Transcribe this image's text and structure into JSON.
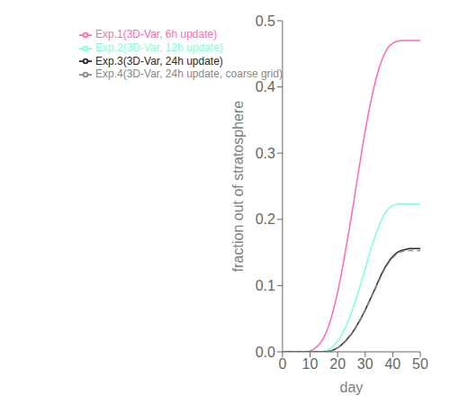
{
  "chart_data": {
    "type": "line",
    "xlabel": "day",
    "ylabel": "fraction out of stratosphere",
    "xlim": [
      0,
      50
    ],
    "ylim": [
      0,
      0.5
    ],
    "xticks": [
      0,
      10,
      20,
      30,
      40,
      50
    ],
    "yticks": [
      {
        "value": 0.0,
        "label": "0.0"
      },
      0.1,
      0.2,
      0.3,
      0.4,
      0.5
    ],
    "grid": false,
    "legend": "upper left",
    "series": [
      {
        "name": "Exp.1(3D-Var, 6h update)",
        "color": "#ff69b4",
        "line_style": "solid",
        "x": [
          0,
          9,
          10,
          11,
          12,
          13,
          14,
          15,
          16,
          17,
          18,
          19,
          20,
          21,
          22,
          23,
          24,
          25,
          26,
          27,
          28,
          29,
          30,
          31,
          32,
          33,
          34,
          35,
          36,
          37,
          38,
          39,
          40,
          41,
          42,
          43,
          44,
          45,
          46,
          47,
          48,
          49,
          50
        ],
        "values": [
          0.0,
          0.0,
          0.001,
          0.003,
          0.006,
          0.01,
          0.015,
          0.022,
          0.031,
          0.042,
          0.056,
          0.072,
          0.09,
          0.11,
          0.132,
          0.156,
          0.18,
          0.205,
          0.23,
          0.257,
          0.283,
          0.309,
          0.333,
          0.356,
          0.377,
          0.396,
          0.413,
          0.428,
          0.44,
          0.45,
          0.458,
          0.463,
          0.466,
          0.468,
          0.469,
          0.47,
          0.47,
          0.47,
          0.47,
          0.47,
          0.47,
          0.47,
          0.47
        ]
      },
      {
        "name": "Exp.2(3D-Var, 12h update)",
        "color": "#7fffd4",
        "line_style": "solid",
        "x": [
          0,
          14,
          15,
          16,
          17,
          18,
          19,
          20,
          21,
          22,
          23,
          24,
          25,
          26,
          27,
          28,
          29,
          30,
          31,
          32,
          33,
          34,
          35,
          36,
          37,
          38,
          39,
          40,
          41,
          42,
          43,
          44,
          45,
          46,
          47,
          48,
          49,
          50
        ],
        "values": [
          0.0,
          0.0,
          0.001,
          0.002,
          0.004,
          0.007,
          0.011,
          0.016,
          0.022,
          0.03,
          0.038,
          0.048,
          0.059,
          0.071,
          0.084,
          0.097,
          0.111,
          0.126,
          0.14,
          0.154,
          0.167,
          0.179,
          0.19,
          0.2,
          0.208,
          0.214,
          0.218,
          0.221,
          0.222,
          0.223,
          0.223,
          0.223,
          0.223,
          0.223,
          0.223,
          0.223,
          0.223,
          0.223
        ]
      },
      {
        "name": "Exp.3(3D-Var, 24h update)",
        "color": "#2a2a2a",
        "line_style": "solid",
        "x": [
          0,
          16,
          17,
          18,
          19,
          20,
          21,
          22,
          23,
          24,
          25,
          26,
          27,
          28,
          29,
          30,
          31,
          32,
          33,
          34,
          35,
          36,
          37,
          38,
          39,
          40,
          41,
          42,
          43,
          44,
          45,
          46,
          47,
          48,
          49,
          50
        ],
        "values": [
          0.0,
          0.0,
          0.001,
          0.002,
          0.004,
          0.006,
          0.009,
          0.013,
          0.017,
          0.022,
          0.027,
          0.033,
          0.04,
          0.047,
          0.055,
          0.063,
          0.072,
          0.081,
          0.09,
          0.099,
          0.109,
          0.118,
          0.126,
          0.133,
          0.139,
          0.144,
          0.148,
          0.151,
          0.153,
          0.154,
          0.155,
          0.156,
          0.156,
          0.156,
          0.156,
          0.156
        ]
      },
      {
        "name": "Exp.4(3D-Var, 24h update, coarse grid)",
        "color": "#888888",
        "line_style": "dashed",
        "x": [
          0,
          16,
          17,
          18,
          19,
          20,
          21,
          22,
          23,
          24,
          25,
          26,
          27,
          28,
          29,
          30,
          31,
          32,
          33,
          34,
          35,
          36,
          37,
          38,
          39,
          40,
          41,
          42,
          43,
          44,
          45,
          46,
          47,
          48,
          49,
          50
        ],
        "values": [
          0.0,
          0.0,
          0.001,
          0.002,
          0.004,
          0.006,
          0.009,
          0.012,
          0.016,
          0.021,
          0.026,
          0.032,
          0.039,
          0.046,
          0.054,
          0.062,
          0.071,
          0.08,
          0.089,
          0.098,
          0.107,
          0.116,
          0.124,
          0.131,
          0.137,
          0.142,
          0.146,
          0.149,
          0.151,
          0.152,
          0.153,
          0.153,
          0.153,
          0.153,
          0.153,
          0.153
        ]
      }
    ]
  }
}
